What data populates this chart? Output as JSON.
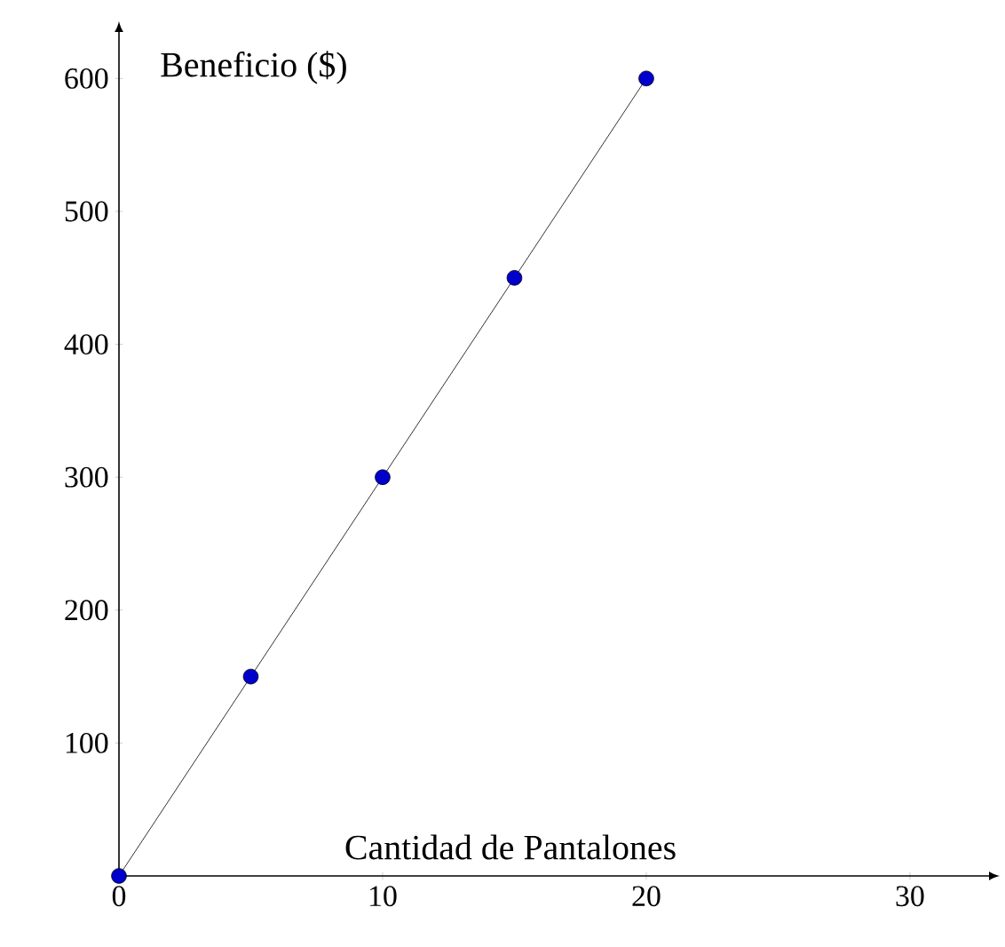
{
  "chart_data": {
    "type": "line",
    "xlabel": "Cantidad de Pantalones",
    "ylabel": "Beneficio ($)",
    "x": [
      0,
      5,
      10,
      15,
      20
    ],
    "series": [
      {
        "color": "#0000cc",
        "values": [
          0,
          150,
          300,
          450,
          600
        ]
      }
    ],
    "marker": "circle",
    "line_style": "solid",
    "xlim": [
      0,
      33
    ],
    "xticks": [
      0,
      10,
      20,
      30
    ],
    "ylim": [
      0,
      635
    ],
    "yticks": [
      100,
      200,
      300,
      400,
      500,
      600
    ]
  }
}
